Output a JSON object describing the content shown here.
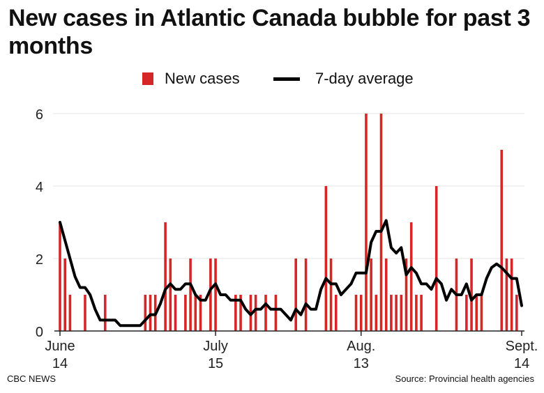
{
  "title": "New cases in Atlantic Canada bubble for past 3 months",
  "legend": {
    "bars_label": "New cases",
    "line_label": "7-day average"
  },
  "footer": {
    "left": "CBC NEWS",
    "right": "Source: Provincial health agencies"
  },
  "colors": {
    "bars": "#d62728",
    "line": "#000000",
    "grid": "#e3e3e3"
  },
  "chart_data": {
    "type": "bar",
    "ylim": [
      0,
      6
    ],
    "y_ticks": [
      0,
      2,
      4,
      6
    ],
    "x_ticks": [
      {
        "day": 0,
        "line1": "June",
        "line2": "14"
      },
      {
        "day": 31,
        "line1": "July",
        "line2": "15"
      },
      {
        "day": 60,
        "line1": "Aug.",
        "line2": "13"
      },
      {
        "day": 92,
        "line1": "Sept.",
        "line2": "14"
      }
    ],
    "x_domain": [
      0,
      92
    ],
    "series": [
      {
        "name": "New cases",
        "type": "bar",
        "values": [
          3,
          2,
          1,
          0,
          0,
          1,
          0,
          0,
          0,
          1,
          0,
          0,
          0,
          0,
          0,
          0,
          0,
          1,
          1,
          1,
          0,
          3,
          2,
          1,
          0,
          1,
          2,
          1,
          1,
          0,
          2,
          2,
          0,
          0,
          0,
          1,
          1,
          0,
          1,
          1,
          0,
          1,
          0,
          1,
          0,
          0,
          0,
          2,
          0,
          2,
          0,
          0,
          0,
          4,
          2,
          1,
          0,
          0,
          0,
          1,
          1,
          6,
          2,
          1,
          6,
          2,
          1,
          1,
          1,
          2,
          3,
          1,
          1,
          0,
          0,
          4,
          0,
          0,
          0,
          2,
          0,
          1,
          2,
          1,
          1,
          0,
          0,
          0,
          5,
          2,
          2,
          1,
          0
        ]
      },
      {
        "name": "7-day average",
        "type": "line",
        "values": [
          3.0,
          2.5,
          2.0,
          1.5,
          1.2,
          1.2,
          1.0,
          0.6,
          0.3,
          0.3,
          0.3,
          0.3,
          0.15,
          0.15,
          0.15,
          0.15,
          0.15,
          0.3,
          0.45,
          0.45,
          0.75,
          1.15,
          1.3,
          1.15,
          1.15,
          1.3,
          1.3,
          1.0,
          0.85,
          0.85,
          1.15,
          1.3,
          1.0,
          1.0,
          0.85,
          0.85,
          0.85,
          0.6,
          0.45,
          0.6,
          0.6,
          0.75,
          0.6,
          0.6,
          0.6,
          0.45,
          0.3,
          0.6,
          0.45,
          0.75,
          0.6,
          0.6,
          1.15,
          1.45,
          1.3,
          1.3,
          1.0,
          1.15,
          1.3,
          1.6,
          1.6,
          1.6,
          2.45,
          2.75,
          2.75,
          3.05,
          2.3,
          2.15,
          2.3,
          1.55,
          1.75,
          1.6,
          1.3,
          1.3,
          1.15,
          1.45,
          1.3,
          0.85,
          1.15,
          1.0,
          1.0,
          1.3,
          0.85,
          1.0,
          1.0,
          1.45,
          1.75,
          1.85,
          1.75,
          1.6,
          1.45,
          1.45,
          0.7
        ]
      }
    ]
  }
}
